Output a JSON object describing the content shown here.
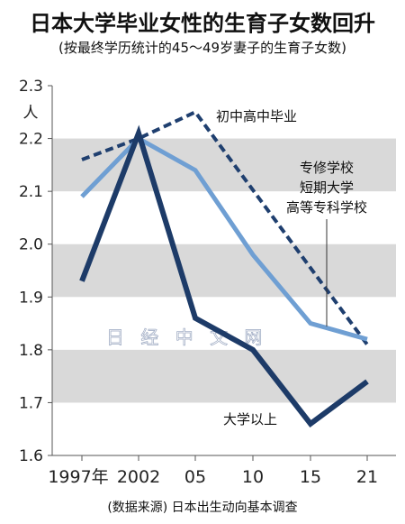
{
  "title": "日本大学毕业女性的生育子女数回升",
  "subtitle": "(按最终学历统计的45～49岁妻子的生育子女数)",
  "source": "(数据来源) 日本出生动向基本调查",
  "watermark": "日 经 中 文 网",
  "chart_data": {
    "type": "line",
    "categories": [
      "1997年",
      "2002",
      "05",
      "10",
      "15",
      "21"
    ],
    "y_unit": "人",
    "ylim": [
      1.6,
      2.3
    ],
    "yticks": [
      "1.6",
      "1.7",
      "1.8",
      "1.9",
      "2.0",
      "2.1",
      "2.2",
      "2.3"
    ],
    "bands": [
      [
        1.7,
        1.8
      ],
      [
        1.9,
        2.0
      ],
      [
        2.1,
        2.2
      ]
    ],
    "series": [
      {
        "name": "初中高中毕业",
        "style": "dashed",
        "color": "#1f3f6f",
        "values": [
          2.16,
          2.2,
          2.25,
          null,
          null,
          1.81
        ]
      },
      {
        "name": "专修学校 短期大学 高等专科学校",
        "label_lines": [
          "专修学校",
          "短期大学",
          "高等专科学校"
        ],
        "style": "solid",
        "color": "#6f9fd3",
        "values": [
          2.09,
          2.2,
          2.14,
          1.98,
          1.85,
          1.82
        ]
      },
      {
        "name": "大学以上",
        "style": "solid",
        "color": "#1d3b68",
        "values": [
          1.93,
          2.21,
          1.86,
          1.8,
          1.66,
          1.74
        ]
      }
    ]
  }
}
